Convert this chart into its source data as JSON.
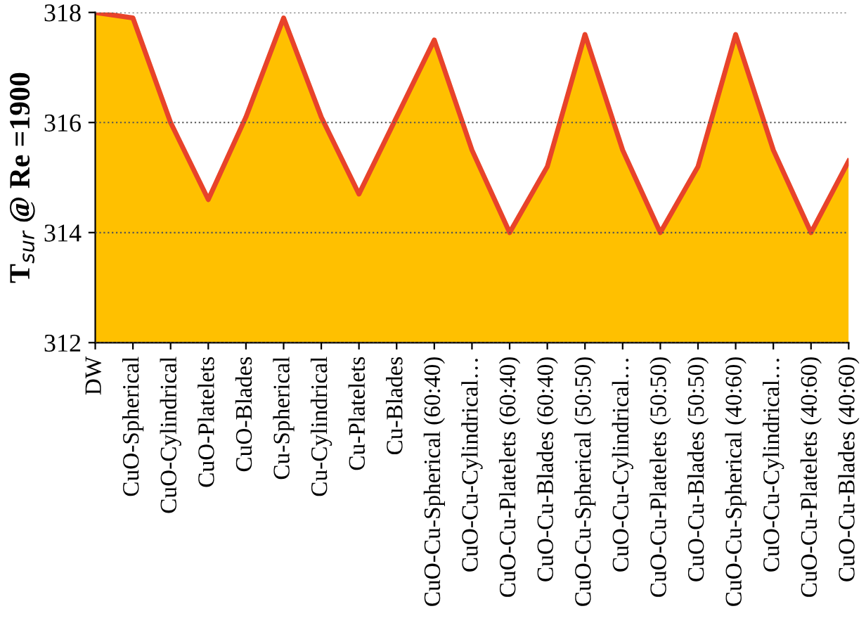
{
  "chart_data": {
    "type": "area",
    "ylabel": "T$_{sur}$ @ Re =1900",
    "categories": [
      "DW",
      "CuO-Spherical",
      "CuO-Cylindrical",
      "CuO-Platelets",
      "CuO-Blades",
      "Cu-Spherical",
      "Cu-Cylindrical",
      "Cu-Platelets",
      "Cu-Blades",
      "CuO-Cu-Spherical (60:40)",
      "CuO-Cu-Cylindrical…",
      "CuO-Cu-Platelets (60:40)",
      "CuO-Cu-Blades (60:40)",
      "CuO-Cu-Spherical (50:50)",
      "CuO-Cu-Cylindrical…",
      "CuO-Cu-Platelets (50:50)",
      "CuO-Cu-Blades (50:50)",
      "CuO-Cu-Spherical (40:60)",
      "CuO-Cu-Cylindrical…",
      "CuO-Cu-Platelets (40:60)",
      "CuO-Cu-Blades (40:60)"
    ],
    "series": [
      {
        "color": "#ffc000",
        "values": [
          318.0,
          317.9,
          316.0,
          314.6,
          316.1,
          317.9,
          316.1,
          314.7,
          316.1,
          317.5,
          315.5,
          314.0,
          315.2,
          317.6,
          315.5,
          314.0,
          315.2,
          317.6,
          315.5,
          314.0,
          315.3
        ]
      }
    ],
    "ylim": [
      312,
      318
    ],
    "yticks": [
      312,
      314,
      316,
      318
    ],
    "grid": "y",
    "line_style": "dotted"
  }
}
